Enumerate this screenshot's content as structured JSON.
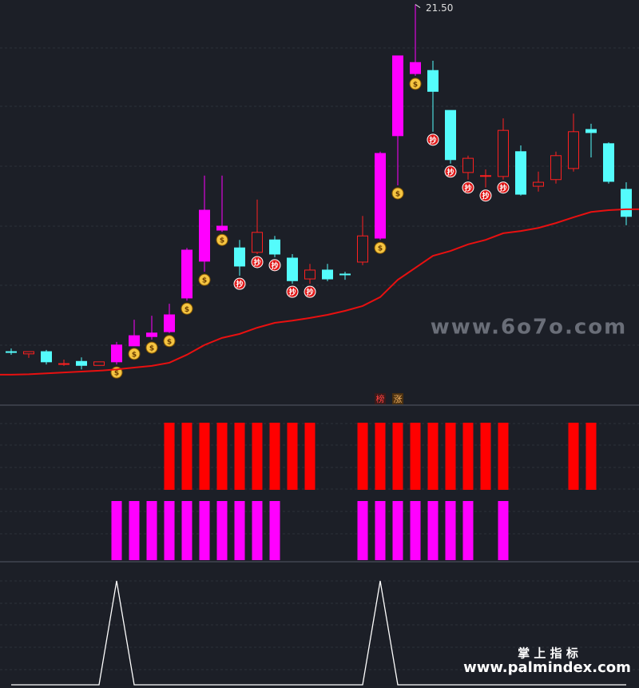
{
  "chart_data": {
    "type": "candlestick",
    "ylim": [
      12.5,
      21.6
    ],
    "open": [
      13.67,
      13.62,
      13.67,
      13.4,
      13.45,
      13.36,
      13.44,
      13.8,
      14.01,
      14.12,
      14.88,
      15.71,
      16.41,
      16.01,
      15.91,
      16.19,
      15.78,
      15.31,
      15.51,
      15.42,
      15.69,
      16.23,
      18.54,
      19.94,
      20.01,
      19.11,
      17.71,
      17.64,
      17.62,
      18.18,
      17.4,
      17.55,
      17.8,
      18.68,
      18.36,
      17.33
    ],
    "high": [
      13.74,
      13.67,
      13.71,
      13.49,
      13.54,
      13.44,
      13.89,
      14.39,
      14.48,
      14.75,
      16.01,
      17.64,
      17.64,
      16.19,
      17.1,
      16.28,
      15.87,
      15.65,
      15.65,
      15.47,
      16.73,
      18.18,
      20.34,
      21.5,
      20.23,
      19.11,
      18.09,
      17.78,
      18.93,
      18.32,
      17.73,
      18.18,
      19.04,
      18.81,
      18.39,
      17.49
    ],
    "low": [
      13.6,
      13.53,
      13.38,
      13.35,
      13.27,
      13.36,
      13.38,
      13.8,
      13.94,
      14.09,
      14.82,
      15.47,
      16.37,
      15.38,
      15.87,
      15.8,
      15.2,
      15.2,
      15.26,
      15.29,
      15.62,
      16.19,
      17.42,
      19.89,
      18.63,
      17.91,
      17.55,
      17.37,
      17.55,
      17.19,
      17.28,
      17.46,
      17.73,
      18.05,
      17.46,
      16.52
    ],
    "close": [
      13.67,
      13.67,
      13.44,
      13.4,
      13.36,
      13.44,
      13.82,
      14.03,
      14.09,
      14.5,
      15.96,
      16.86,
      16.5,
      15.6,
      16.36,
      15.87,
      15.27,
      15.51,
      15.31,
      15.42,
      16.28,
      18.14,
      20.34,
      20.19,
      19.54,
      18.0,
      18.03,
      17.64,
      18.66,
      17.22,
      17.49,
      18.09,
      18.63,
      18.61,
      17.51,
      16.72
    ],
    "candle_colors": [
      "#54fcfc",
      "#ff2020",
      "#54fcfc",
      "#ff2020",
      "#54fcfc",
      "#ff2020",
      "#ff00ff",
      "#ff00ff",
      "#ff00ff",
      "#ff00ff",
      "#ff00ff",
      "#ff00ff",
      "#ff00ff",
      "#54fcfc",
      "#ff2020",
      "#54fcfc",
      "#54fcfc",
      "#ff2020",
      "#54fcfc",
      "#54fcfc",
      "#ff2020",
      "#ff00ff",
      "#ff00ff",
      "#ff00ff",
      "#54fcfc",
      "#54fcfc",
      "#ff2020",
      "#ff2020",
      "#ff2020",
      "#54fcfc",
      "#ff2020",
      "#ff2020",
      "#ff2020",
      "#54fcfc",
      "#54fcfc",
      "#54fcfc"
    ],
    "up_color": "#ff2020",
    "max_label": {
      "value": 21.5,
      "label": "21.50"
    },
    "ma": {
      "color": "#e81010",
      "values": [
        13.15,
        13.16,
        13.18,
        13.2,
        13.22,
        13.24,
        13.27,
        13.31,
        13.35,
        13.42,
        13.6,
        13.82,
        13.98,
        14.07,
        14.21,
        14.32,
        14.37,
        14.43,
        14.5,
        14.59,
        14.7,
        14.9,
        15.29,
        15.56,
        15.83,
        15.94,
        16.09,
        16.19,
        16.34,
        16.39,
        16.46,
        16.57,
        16.7,
        16.82,
        16.86,
        16.88
      ]
    },
    "signals": [
      null,
      null,
      null,
      null,
      null,
      null,
      "$",
      "$",
      "$",
      "$",
      "$",
      "$",
      "$",
      "抄",
      "抄",
      "抄",
      "抄",
      "抄",
      null,
      null,
      null,
      "$",
      "$",
      "$",
      "抄",
      "抄",
      "抄",
      "抄",
      "抄",
      null,
      null,
      null,
      null,
      null,
      null,
      null
    ],
    "tags": [
      null,
      null,
      null,
      null,
      null,
      null,
      null,
      null,
      null,
      null,
      null,
      null,
      null,
      null,
      null,
      null,
      null,
      null,
      null,
      null,
      null,
      "榜",
      "涨",
      null,
      null,
      null,
      null,
      null,
      null,
      null,
      null,
      null,
      null,
      null,
      null,
      null
    ],
    "red_signal": {
      "color": "#ff0000",
      "values": [
        0,
        0,
        0,
        0,
        0,
        0,
        0,
        0,
        0,
        1,
        1,
        1,
        1,
        1,
        1,
        1,
        1,
        1,
        0,
        0,
        1,
        1,
        1,
        1,
        1,
        1,
        1,
        1,
        1,
        0,
        0,
        0,
        1,
        1,
        0,
        0
      ]
    },
    "magenta_signal": {
      "color": "#ff00ff",
      "values": [
        0,
        0,
        0,
        0,
        0,
        0,
        1,
        1,
        1,
        1,
        1,
        1,
        1,
        1,
        1,
        1,
        0,
        0,
        0,
        0,
        1,
        1,
        1,
        1,
        1,
        1,
        1,
        0,
        1,
        0,
        0,
        0,
        0,
        0,
        0,
        0
      ]
    },
    "bottom_line": {
      "color": "#ffffff",
      "values": [
        0,
        0,
        0,
        0,
        0,
        0,
        1,
        0,
        0,
        0,
        0,
        0,
        0,
        0,
        0,
        0,
        0,
        0,
        0,
        0,
        0,
        1,
        0,
        0,
        0,
        0,
        0,
        0,
        0,
        0,
        0,
        0,
        0,
        0,
        0,
        0
      ]
    },
    "watermark": "www.6o7o.com",
    "brand_cn": "掌 上 指 标",
    "brand_url": "www.palmindex.com"
  }
}
